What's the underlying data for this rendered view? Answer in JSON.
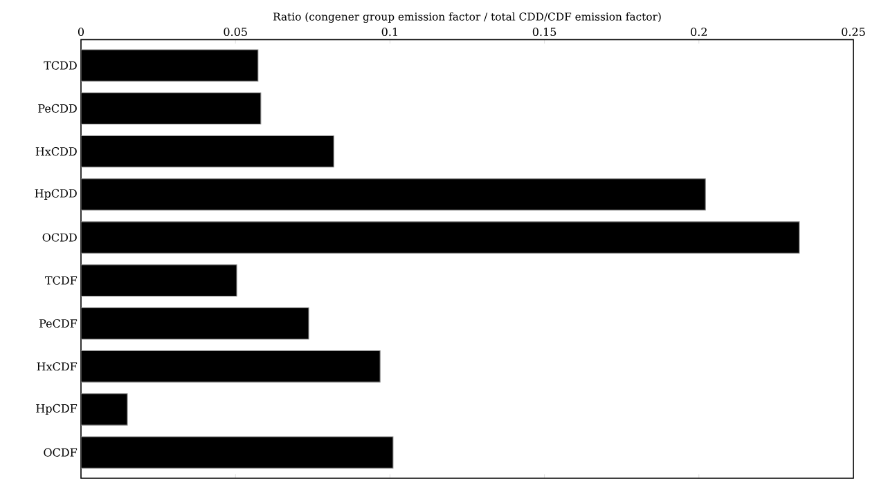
{
  "chart_data": {
    "type": "bar",
    "orientation": "horizontal",
    "xlabel": "Ratio (congener group emission factor / total CDD/CDF emission factor)",
    "categories": [
      "TCDD",
      "PeCDD",
      "HxCDD",
      "HpCDD",
      "OCDD",
      "TCDF",
      "PeCDF",
      "HxCDF",
      "HpCDF",
      "OCDF"
    ],
    "values": [
      0.0573,
      0.0582,
      0.0818,
      0.2021,
      0.2325,
      0.0504,
      0.0737,
      0.0968,
      0.015,
      0.101
    ],
    "color": "#000000",
    "xlim": [
      0,
      0.25
    ],
    "xticks": [
      0,
      0.05,
      0.1,
      0.15,
      0.2,
      0.25
    ],
    "grid": false
  }
}
